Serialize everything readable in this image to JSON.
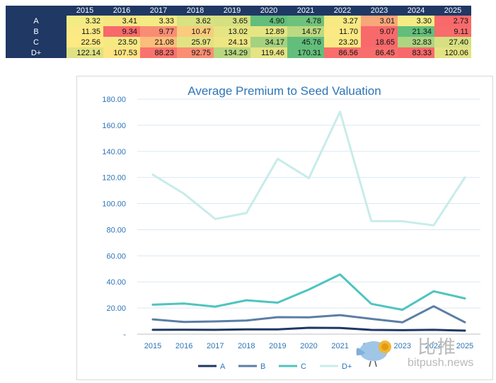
{
  "table": {
    "years": [
      "2015",
      "2016",
      "2017",
      "2018",
      "2019",
      "2020",
      "2021",
      "2022",
      "2023",
      "2024",
      "2025"
    ],
    "rows": [
      {
        "label": "A",
        "cells": [
          {
            "value": "3.32",
            "color": "#f3eb84"
          },
          {
            "value": "3.41",
            "color": "#f6e682"
          },
          {
            "value": "3.33",
            "color": "#f3eb84"
          },
          {
            "value": "3.62",
            "color": "#d8e281"
          },
          {
            "value": "3.65",
            "color": "#d5e080"
          },
          {
            "value": "4.90",
            "color": "#63be7b"
          },
          {
            "value": "4.78",
            "color": "#6ec27c"
          },
          {
            "value": "3.27",
            "color": "#f7e983"
          },
          {
            "value": "3.01",
            "color": "#f8a77a"
          },
          {
            "value": "3.30",
            "color": "#f4eb84"
          },
          {
            "value": "2.73",
            "color": "#f8696b"
          }
        ]
      },
      {
        "label": "B",
        "cells": [
          {
            "value": "11.35",
            "color": "#fbe983"
          },
          {
            "value": "9.34",
            "color": "#f8696b"
          },
          {
            "value": "9.77",
            "color": "#f88d74"
          },
          {
            "value": "10.47",
            "color": "#fbcb7d"
          },
          {
            "value": "13.02",
            "color": "#e5e583"
          },
          {
            "value": "12.89",
            "color": "#e6e583"
          },
          {
            "value": "14.57",
            "color": "#bdd981"
          },
          {
            "value": "11.70",
            "color": "#fbe983"
          },
          {
            "value": "9.07",
            "color": "#f8696b"
          },
          {
            "value": "21.34",
            "color": "#63be7b"
          },
          {
            "value": "9.11",
            "color": "#f86c6c"
          }
        ]
      },
      {
        "label": "C",
        "cells": [
          {
            "value": "22.56",
            "color": "#fee983"
          },
          {
            "value": "23.50",
            "color": "#f5e984"
          },
          {
            "value": "21.08",
            "color": "#fbbd7b"
          },
          {
            "value": "25.97",
            "color": "#e1e383"
          },
          {
            "value": "24.13",
            "color": "#eee683"
          },
          {
            "value": "34.17",
            "color": "#a4d27f"
          },
          {
            "value": "45.76",
            "color": "#63be7b"
          },
          {
            "value": "23.20",
            "color": "#f9e984"
          },
          {
            "value": "18.65",
            "color": "#f8696b"
          },
          {
            "value": "32.83",
            "color": "#add580"
          },
          {
            "value": "27.40",
            "color": "#d6e082"
          }
        ]
      },
      {
        "label": "D+",
        "cells": [
          {
            "value": "122.14",
            "color": "#dfe283"
          },
          {
            "value": "107.53",
            "color": "#fee482"
          },
          {
            "value": "88.23",
            "color": "#f8736d"
          },
          {
            "value": "92.75",
            "color": "#f98e73"
          },
          {
            "value": "134.29",
            "color": "#b7d780"
          },
          {
            "value": "119.46",
            "color": "#e5e383"
          },
          {
            "value": "170.31",
            "color": "#63be7b"
          },
          {
            "value": "86.56",
            "color": "#f86e6c"
          },
          {
            "value": "86.45",
            "color": "#f86e6c"
          },
          {
            "value": "83.33",
            "color": "#f8696b"
          },
          {
            "value": "120.06",
            "color": "#e3e383"
          }
        ]
      }
    ]
  },
  "chart_data": {
    "type": "line",
    "title": "Average Premium to Seed Valuation",
    "xlabel": "",
    "ylabel": "",
    "x": [
      "2015",
      "2016",
      "2017",
      "2018",
      "2019",
      "2020",
      "2021",
      "2022",
      "2023",
      "2024",
      "2025"
    ],
    "ylim": [
      0,
      180
    ],
    "yticks": [
      {
        "value": 0,
        "label": "-"
      },
      {
        "value": 20,
        "label": "20.00"
      },
      {
        "value": 40,
        "label": "40.00"
      },
      {
        "value": 60,
        "label": "60.00"
      },
      {
        "value": 80,
        "label": "80.00"
      },
      {
        "value": 100,
        "label": "100.00"
      },
      {
        "value": 120,
        "label": "120.00"
      },
      {
        "value": 140,
        "label": "140.00"
      },
      {
        "value": 160,
        "label": "160.00"
      },
      {
        "value": 180,
        "label": "180.00"
      }
    ],
    "grid": true,
    "legend_position": "bottom",
    "series": [
      {
        "name": "A",
        "color": "#1f3864",
        "values": [
          3.32,
          3.41,
          3.33,
          3.62,
          3.65,
          4.9,
          4.78,
          3.27,
          3.01,
          3.3,
          2.73
        ]
      },
      {
        "name": "B",
        "color": "#5b7ea6",
        "values": [
          11.35,
          9.34,
          9.77,
          10.47,
          13.02,
          12.89,
          14.57,
          11.7,
          9.07,
          21.34,
          9.11
        ]
      },
      {
        "name": "C",
        "color": "#4fc4c0",
        "values": [
          22.56,
          23.5,
          21.08,
          25.97,
          24.13,
          34.17,
          45.76,
          23.2,
          18.65,
          32.83,
          27.4
        ]
      },
      {
        "name": "D+",
        "color": "#c8ecea",
        "values": [
          122.14,
          107.53,
          88.23,
          92.75,
          134.29,
          119.46,
          170.31,
          86.56,
          86.45,
          83.33,
          120.06
        ]
      }
    ]
  },
  "watermark": {
    "chinese": "比推",
    "url": "bitpush.news"
  }
}
